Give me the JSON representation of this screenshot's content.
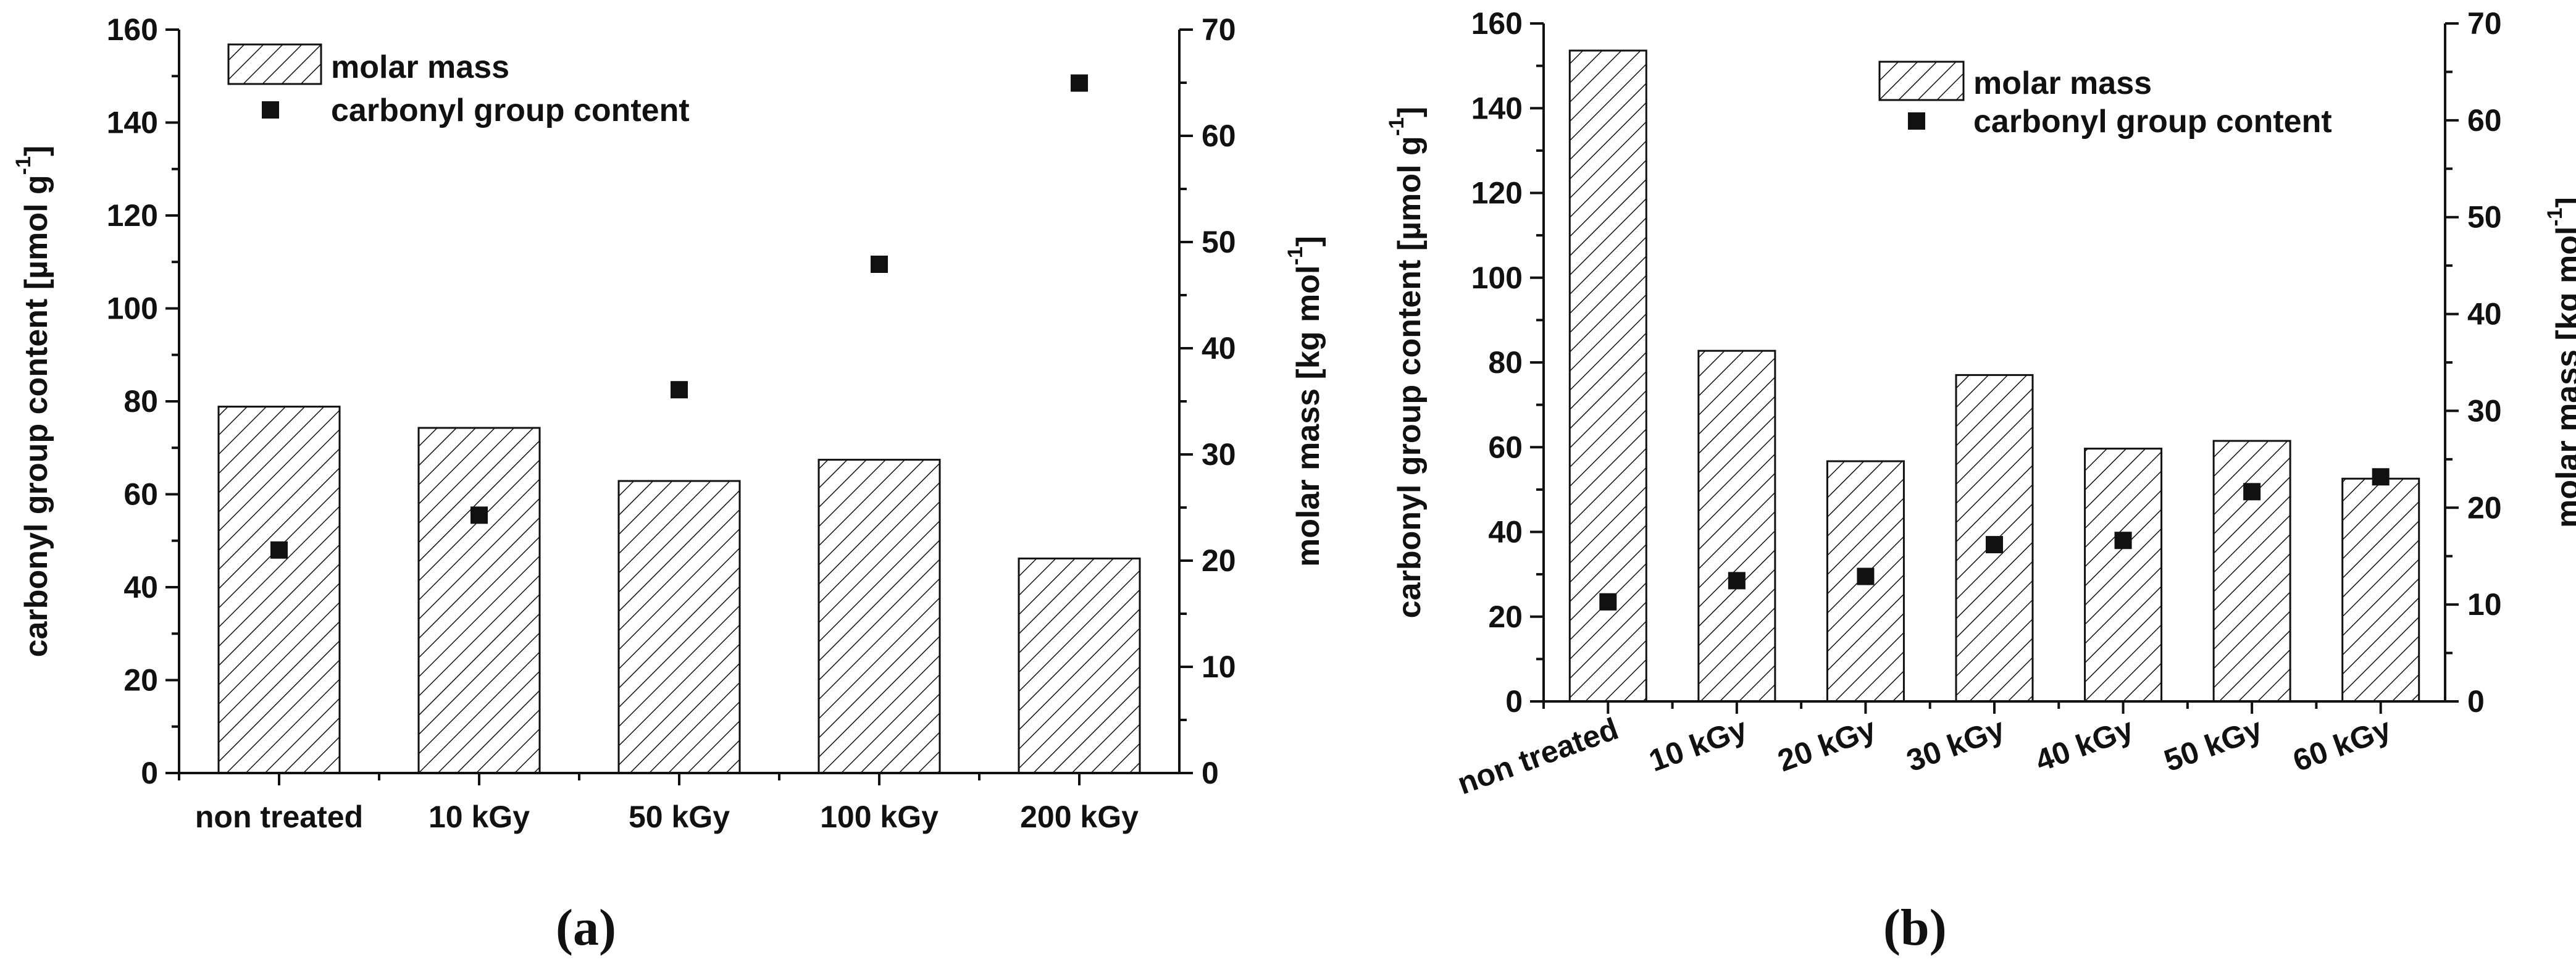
{
  "chart_data": [
    {
      "type": "bar",
      "panel_label": "(a)",
      "categories": [
        "non treated",
        "10 kGy",
        "50 kGy",
        "100 kGy",
        "200 kGy"
      ],
      "rotate_category_labels": false,
      "series": [
        {
          "name": "molar mass",
          "kind": "bar",
          "axis": "right",
          "values": [
            34.5,
            32.5,
            27.5,
            29.5,
            20.2
          ]
        },
        {
          "name": "carbonyl group content",
          "kind": "scatter",
          "axis": "left",
          "values": [
            48,
            55.5,
            82.5,
            109.5,
            148.5
          ]
        }
      ],
      "ylabel": "carbonyl group content [µmol g⁻¹]",
      "ylabel_parts": [
        "carbonyl group content [µmol g",
        "-1",
        "]"
      ],
      "ylim": [
        0,
        160
      ],
      "yticks": [
        "0",
        "20",
        "40",
        "60",
        "80",
        "100",
        "120",
        "140",
        "160"
      ],
      "y2label": "molar mass [kg mol⁻¹]",
      "y2label_parts": [
        "molar mass [kg mol",
        "-1",
        "]"
      ],
      "y2lim": [
        0,
        70
      ],
      "y2ticks": [
        "0",
        "10",
        "20",
        "30",
        "40",
        "50",
        "60",
        "70"
      ],
      "legend": {
        "entries": [
          "molar mass",
          "carbonyl group content"
        ],
        "position": "top-left"
      },
      "grid": false
    },
    {
      "type": "bar",
      "panel_label": "(b)",
      "categories": [
        "non treated",
        "10 kGy",
        "20 kGy",
        "30 kGy",
        "40 kGy",
        "50 kGy",
        "60 kGy"
      ],
      "rotate_category_labels": true,
      "series": [
        {
          "name": "molar mass",
          "kind": "bar",
          "axis": "right",
          "values": [
            67.2,
            36.2,
            24.8,
            33.7,
            26.1,
            26.9,
            23
          ]
        },
        {
          "name": "carbonyl group content",
          "kind": "scatter",
          "axis": "left",
          "values": [
            23.5,
            28.5,
            29.5,
            37,
            38,
            49.5,
            53
          ]
        }
      ],
      "ylabel": "carbonyl group content [µmol g⁻¹]",
      "ylabel_parts": [
        "carbonyl group content [µmol g",
        "-1",
        "]"
      ],
      "ylim": [
        0,
        160
      ],
      "yticks": [
        "0",
        "20",
        "40",
        "60",
        "80",
        "100",
        "120",
        "140",
        "160"
      ],
      "y2label": "molar mass [kg mol⁻¹]",
      "y2label_parts": [
        "molar mass [kg mol",
        "-1",
        "]"
      ],
      "y2lim": [
        0,
        70
      ],
      "y2ticks": [
        "0",
        "10",
        "20",
        "30",
        "40",
        "50",
        "60",
        "70"
      ],
      "legend": {
        "entries": [
          "molar mass",
          "carbonyl group content"
        ],
        "position": "top-right"
      },
      "grid": false
    }
  ]
}
